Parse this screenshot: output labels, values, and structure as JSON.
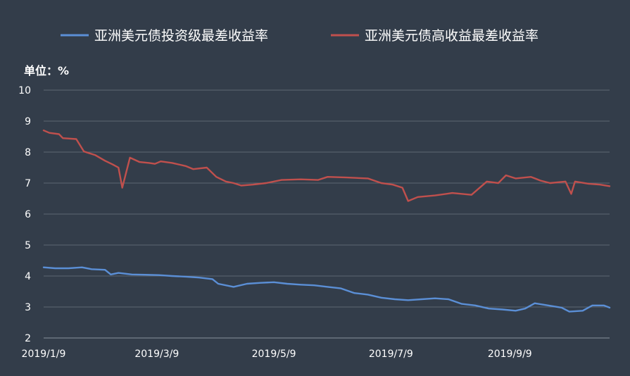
{
  "chart_data": {
    "type": "line",
    "unit_label": "单位：%",
    "ylim": [
      2,
      10
    ],
    "yticks": [
      "10",
      "9",
      "8",
      "7",
      "6",
      "5",
      "4",
      "3",
      "2"
    ],
    "xtick_labels": [
      "2019/1/9",
      "2019/3/9",
      "2019/5/9",
      "2019/7/9",
      "2019/9/9"
    ],
    "x_range": [
      "2019-01-09",
      "2019-10-31"
    ],
    "grid": true,
    "legend_position": "top",
    "series": [
      {
        "name": "亚洲美元债投资级最差收益率",
        "color": "#5b8fd6",
        "points": [
          [
            "2019-01-09",
            4.28
          ],
          [
            "2019-01-15",
            4.25
          ],
          [
            "2019-01-22",
            4.25
          ],
          [
            "2019-01-29",
            4.28
          ],
          [
            "2019-02-03",
            4.22
          ],
          [
            "2019-02-10",
            4.2
          ],
          [
            "2019-02-13",
            4.05
          ],
          [
            "2019-02-17",
            4.1
          ],
          [
            "2019-02-24",
            4.05
          ],
          [
            "2019-03-03",
            4.04
          ],
          [
            "2019-03-10",
            4.03
          ],
          [
            "2019-03-17",
            4.0
          ],
          [
            "2019-03-24",
            3.98
          ],
          [
            "2019-03-31",
            3.95
          ],
          [
            "2019-04-07",
            3.9
          ],
          [
            "2019-04-10",
            3.75
          ],
          [
            "2019-04-18",
            3.65
          ],
          [
            "2019-04-25",
            3.75
          ],
          [
            "2019-05-02",
            3.78
          ],
          [
            "2019-05-09",
            3.8
          ],
          [
            "2019-05-16",
            3.75
          ],
          [
            "2019-05-23",
            3.72
          ],
          [
            "2019-05-30",
            3.7
          ],
          [
            "2019-06-06",
            3.65
          ],
          [
            "2019-06-13",
            3.6
          ],
          [
            "2019-06-20",
            3.45
          ],
          [
            "2019-06-27",
            3.4
          ],
          [
            "2019-07-04",
            3.3
          ],
          [
            "2019-07-11",
            3.25
          ],
          [
            "2019-07-18",
            3.22
          ],
          [
            "2019-07-25",
            3.25
          ],
          [
            "2019-08-01",
            3.28
          ],
          [
            "2019-08-08",
            3.25
          ],
          [
            "2019-08-15",
            3.1
          ],
          [
            "2019-08-22",
            3.05
          ],
          [
            "2019-08-29",
            2.95
          ],
          [
            "2019-09-05",
            2.92
          ],
          [
            "2019-09-12",
            2.88
          ],
          [
            "2019-09-17",
            2.95
          ],
          [
            "2019-09-22",
            3.12
          ],
          [
            "2019-09-29",
            3.05
          ],
          [
            "2019-10-06",
            2.98
          ],
          [
            "2019-10-10",
            2.85
          ],
          [
            "2019-10-17",
            2.88
          ],
          [
            "2019-10-22",
            3.05
          ],
          [
            "2019-10-28",
            3.05
          ],
          [
            "2019-10-31",
            2.98
          ]
        ]
      },
      {
        "name": "亚洲美元债高收益最差收益率",
        "color": "#c0504d",
        "points": [
          [
            "2019-01-09",
            8.7
          ],
          [
            "2019-01-12",
            8.62
          ],
          [
            "2019-01-17",
            8.58
          ],
          [
            "2019-01-19",
            8.45
          ],
          [
            "2019-01-26",
            8.42
          ],
          [
            "2019-01-30",
            8.02
          ],
          [
            "2019-02-05",
            7.9
          ],
          [
            "2019-02-10",
            7.72
          ],
          [
            "2019-02-14",
            7.6
          ],
          [
            "2019-02-17",
            7.5
          ],
          [
            "2019-02-19",
            6.85
          ],
          [
            "2019-02-23",
            7.82
          ],
          [
            "2019-02-28",
            7.68
          ],
          [
            "2019-03-05",
            7.65
          ],
          [
            "2019-03-08",
            7.62
          ],
          [
            "2019-03-11",
            7.7
          ],
          [
            "2019-03-17",
            7.65
          ],
          [
            "2019-03-24",
            7.55
          ],
          [
            "2019-03-28",
            7.45
          ],
          [
            "2019-04-04",
            7.5
          ],
          [
            "2019-04-09",
            7.2
          ],
          [
            "2019-04-14",
            7.05
          ],
          [
            "2019-04-18",
            7.0
          ],
          [
            "2019-04-22",
            6.92
          ],
          [
            "2019-04-28",
            6.95
          ],
          [
            "2019-05-05",
            7.0
          ],
          [
            "2019-05-13",
            7.1
          ],
          [
            "2019-05-23",
            7.12
          ],
          [
            "2019-06-01",
            7.1
          ],
          [
            "2019-06-06",
            7.2
          ],
          [
            "2019-06-16",
            7.18
          ],
          [
            "2019-06-27",
            7.15
          ],
          [
            "2019-07-04",
            7.0
          ],
          [
            "2019-07-10",
            6.95
          ],
          [
            "2019-07-15",
            6.85
          ],
          [
            "2019-07-18",
            6.42
          ],
          [
            "2019-07-23",
            6.55
          ],
          [
            "2019-08-01",
            6.6
          ],
          [
            "2019-08-10",
            6.68
          ],
          [
            "2019-08-20",
            6.62
          ],
          [
            "2019-08-28",
            7.05
          ],
          [
            "2019-09-03",
            7.0
          ],
          [
            "2019-09-07",
            7.25
          ],
          [
            "2019-09-12",
            7.15
          ],
          [
            "2019-09-20",
            7.2
          ],
          [
            "2019-09-25",
            7.08
          ],
          [
            "2019-09-30",
            7.0
          ],
          [
            "2019-10-08",
            7.05
          ],
          [
            "2019-10-11",
            6.65
          ],
          [
            "2019-10-13",
            7.05
          ],
          [
            "2019-10-20",
            6.98
          ],
          [
            "2019-10-26",
            6.95
          ],
          [
            "2019-10-31",
            6.9
          ]
        ]
      }
    ]
  }
}
